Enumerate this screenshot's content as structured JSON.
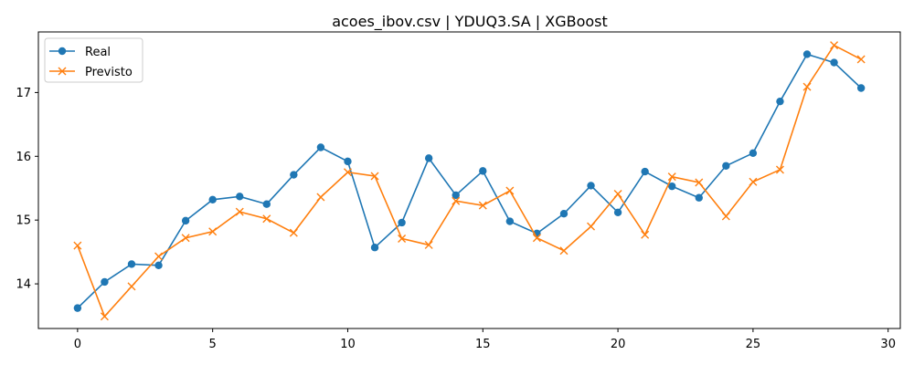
{
  "chart_data": {
    "type": "line",
    "title": "acoes_ibov.csv | YDUQ3.SA | XGBoost",
    "xlabel": "",
    "ylabel": "",
    "x": [
      0,
      1,
      2,
      3,
      4,
      5,
      6,
      7,
      8,
      9,
      10,
      11,
      12,
      13,
      14,
      15,
      16,
      17,
      18,
      19,
      20,
      21,
      22,
      23,
      24,
      25,
      26,
      27,
      28,
      29
    ],
    "xlim": [
      -1.45,
      30.45
    ],
    "ylim": [
      13.3,
      17.95
    ],
    "x_ticks": [
      0,
      5,
      10,
      15,
      20,
      25,
      30
    ],
    "y_ticks": [
      14,
      15,
      16,
      17
    ],
    "grid": false,
    "legend_position": "top-left",
    "series": [
      {
        "name": "Real",
        "color": "#1f77b4",
        "marker": "circle",
        "values": [
          13.62,
          14.03,
          14.31,
          14.29,
          14.99,
          15.32,
          15.37,
          15.25,
          15.71,
          16.14,
          15.92,
          14.57,
          14.96,
          15.97,
          15.39,
          15.77,
          14.98,
          14.79,
          15.1,
          15.54,
          15.12,
          15.76,
          15.53,
          15.35,
          15.85,
          16.05,
          16.86,
          17.6,
          17.47,
          17.07
        ]
      },
      {
        "name": "Previsto",
        "color": "#ff7f0e",
        "marker": "x",
        "values": [
          14.6,
          13.49,
          13.96,
          14.43,
          14.72,
          14.82,
          15.13,
          15.02,
          14.8,
          15.36,
          15.75,
          15.69,
          14.71,
          14.61,
          15.3,
          15.23,
          15.46,
          14.72,
          14.52,
          14.9,
          15.41,
          14.77,
          15.68,
          15.59,
          15.06,
          15.6,
          15.79,
          17.09,
          17.74,
          17.52
        ]
      }
    ]
  }
}
